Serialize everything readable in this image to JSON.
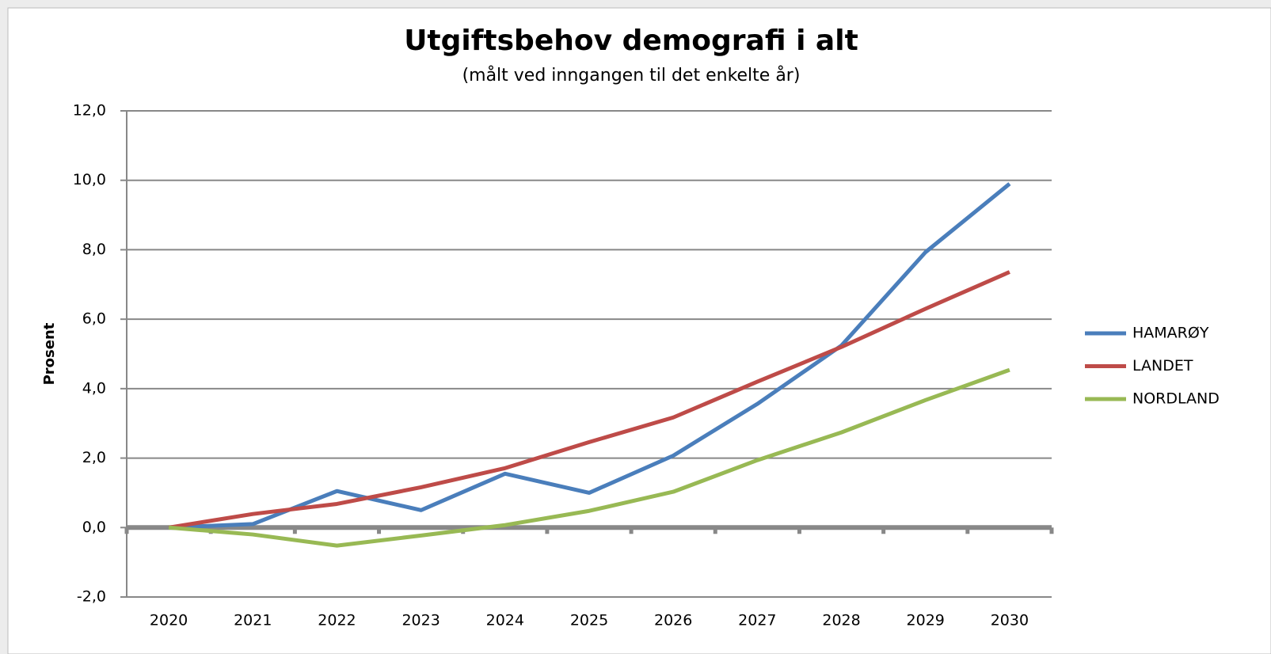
{
  "chart_data": {
    "type": "line",
    "title": "Utgiftsbehov demografi i alt",
    "subtitle": "(målt ved inngangen til det enkelte år)",
    "y_label": "Prosent",
    "categories": [
      "2020",
      "2021",
      "2022",
      "2023",
      "2024",
      "2025",
      "2026",
      "2027",
      "2028",
      "2029",
      "2030"
    ],
    "series": [
      {
        "name": "HAMARØY",
        "color": "#4a7ebb",
        "values": [
          0,
          0.1,
          1.05,
          0.5,
          1.55,
          1.0,
          2.07,
          3.56,
          5.24,
          7.93,
          9.9
        ]
      },
      {
        "name": "LANDET",
        "color": "#be4b48",
        "values": [
          0,
          0.39,
          0.68,
          1.16,
          1.71,
          2.46,
          3.17,
          4.2,
          5.2,
          6.3,
          7.36
        ]
      },
      {
        "name": "NORDLAND",
        "color": "#98b954",
        "values": [
          0,
          -0.2,
          -0.52,
          -0.23,
          0.07,
          0.48,
          1.03,
          1.94,
          2.74,
          3.67,
          4.54
        ]
      }
    ],
    "ylim": [
      -2,
      12
    ],
    "yticks": [
      {
        "value": -2,
        "label": "-2,0"
      },
      {
        "value": 0,
        "label": "0,0"
      },
      {
        "value": 2,
        "label": "2,0"
      },
      {
        "value": 4,
        "label": "4,0"
      },
      {
        "value": 6,
        "label": "6,0"
      },
      {
        "value": 8,
        "label": "8,0"
      },
      {
        "value": 10,
        "label": "10,0"
      },
      {
        "value": 12,
        "label": "12,0"
      }
    ],
    "grid": true,
    "legend": "right"
  }
}
